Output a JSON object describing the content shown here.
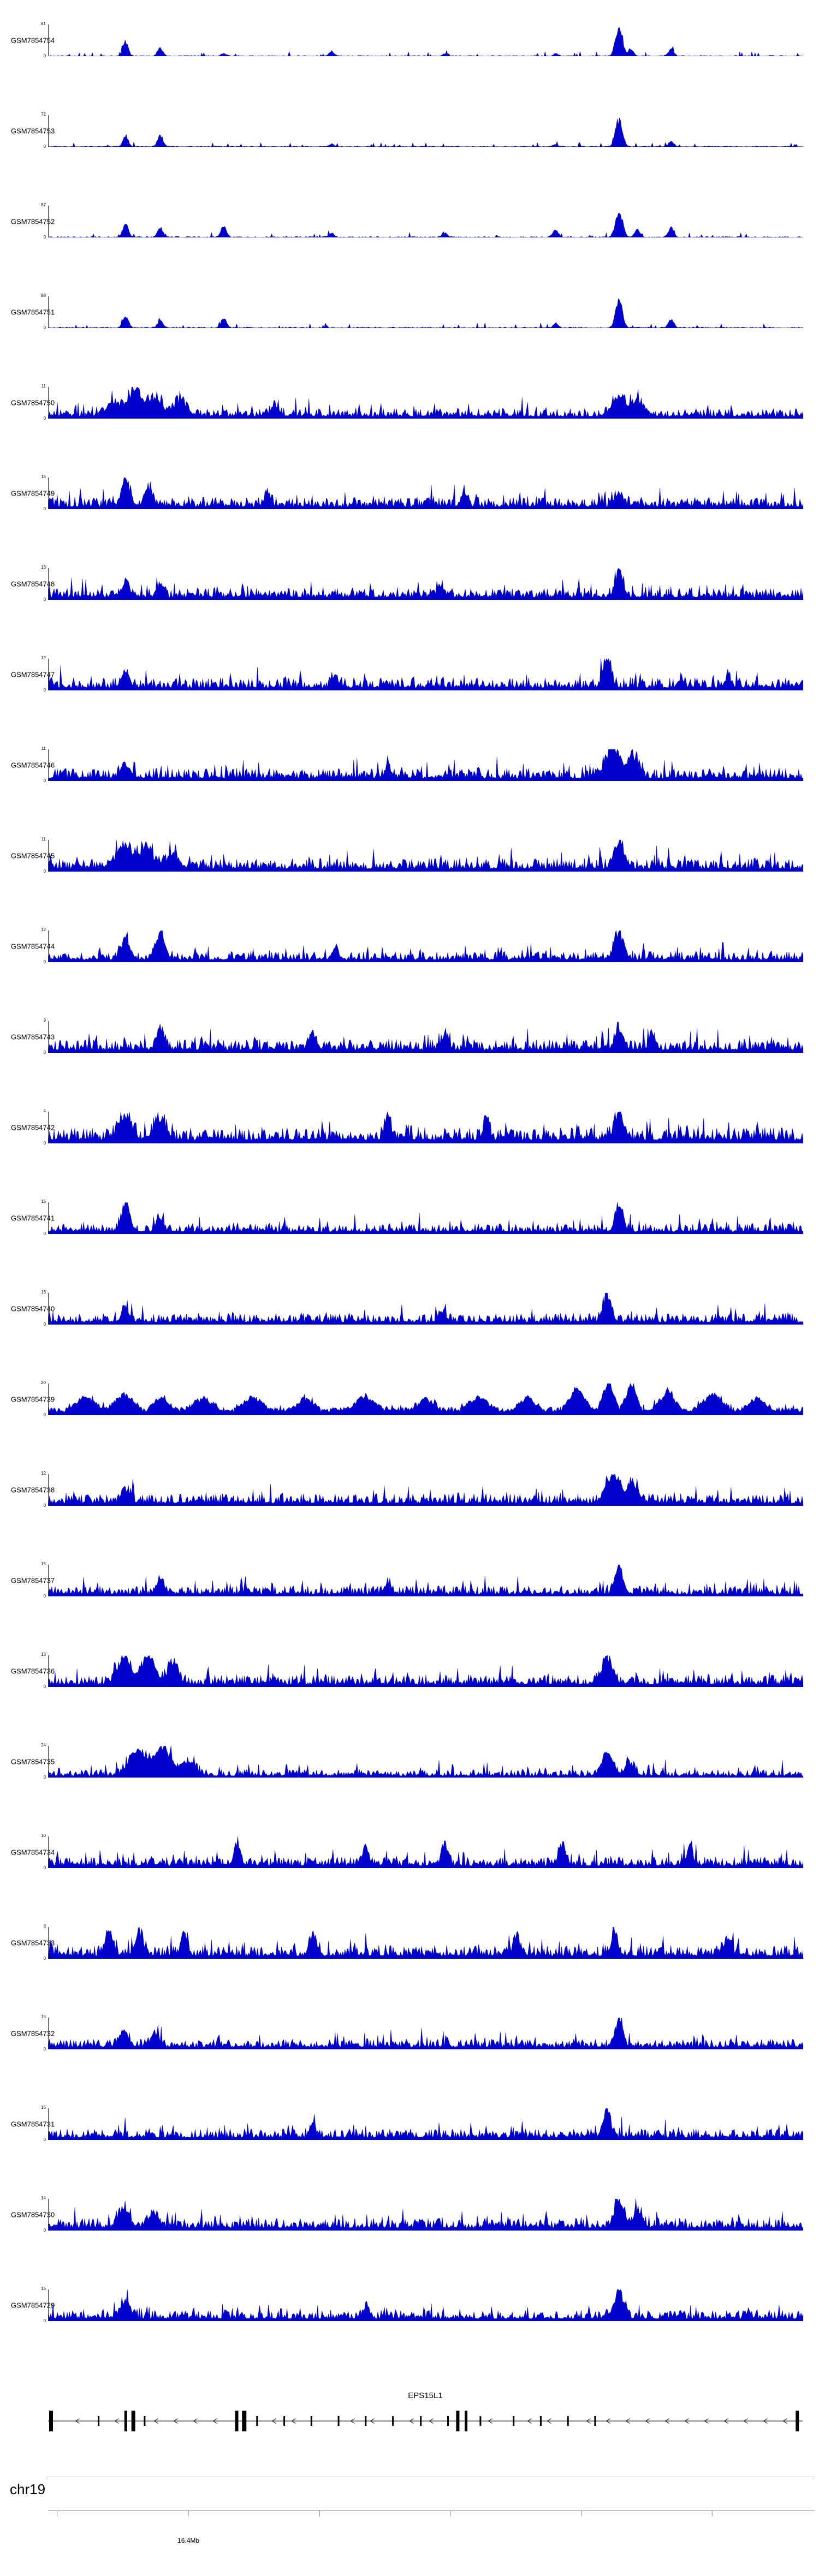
{
  "figure": {
    "signal_color": "#0000cd",
    "chromosome": "chr19",
    "y_min_label": "0",
    "gene": {
      "name": "EPS15L1",
      "strand": "-",
      "exons": [
        [
          0.004,
          7,
          1
        ],
        [
          0.067,
          3,
          0
        ],
        [
          0.103,
          5,
          1
        ],
        [
          0.113,
          7,
          1
        ],
        [
          0.128,
          3,
          0
        ],
        [
          0.25,
          6,
          1
        ],
        [
          0.26,
          8,
          1
        ],
        [
          0.277,
          3,
          0
        ],
        [
          0.313,
          3,
          0
        ],
        [
          0.349,
          3,
          0
        ],
        [
          0.385,
          3,
          0
        ],
        [
          0.421,
          3,
          0
        ],
        [
          0.457,
          3,
          0
        ],
        [
          0.494,
          3,
          0
        ],
        [
          0.53,
          3,
          0
        ],
        [
          0.543,
          6,
          1
        ],
        [
          0.554,
          5,
          1
        ],
        [
          0.573,
          3,
          0
        ],
        [
          0.617,
          3,
          0
        ],
        [
          0.653,
          3,
          0
        ],
        [
          0.689,
          3,
          0
        ],
        [
          0.725,
          3,
          0
        ],
        [
          0.993,
          6,
          1
        ]
      ]
    },
    "ruler": {
      "tick_label": "16.4Mb",
      "tick_positions": [
        0.012,
        0.186,
        0.36,
        0.533,
        0.707,
        0.88
      ],
      "labeled_tick_index": 1
    }
  },
  "chart_data": {
    "type": "area",
    "x_axis": {
      "chromosome": "chr19",
      "labeled_position": "16.4Mb"
    },
    "tracks": [
      {
        "name": "GSM7854754",
        "ymax": 81,
        "style": "sparse",
        "baseline": 0.022,
        "peaks": [
          [
            0.102,
            0.52,
            0.0035
          ],
          [
            0.148,
            0.3,
            0.0035
          ],
          [
            0.232,
            0.1,
            0.003
          ],
          [
            0.375,
            0.16,
            0.0035
          ],
          [
            0.525,
            0.09,
            0.003
          ],
          [
            0.672,
            0.1,
            0.003
          ],
          [
            0.756,
            1.0,
            0.0045
          ],
          [
            0.772,
            0.22,
            0.0035
          ],
          [
            0.825,
            0.24,
            0.0035
          ]
        ]
      },
      {
        "name": "GSM7854753",
        "ymax": 72,
        "style": "sparse",
        "baseline": 0.02,
        "peaks": [
          [
            0.102,
            0.4,
            0.0035
          ],
          [
            0.148,
            0.42,
            0.0035
          ],
          [
            0.375,
            0.1,
            0.003
          ],
          [
            0.672,
            0.08,
            0.003
          ],
          [
            0.756,
            1.0,
            0.0045
          ],
          [
            0.825,
            0.18,
            0.0035
          ]
        ]
      },
      {
        "name": "GSM7854752",
        "ymax": 87,
        "style": "sparse",
        "baseline": 0.028,
        "peaks": [
          [
            0.102,
            0.5,
            0.0035
          ],
          [
            0.148,
            0.36,
            0.0035
          ],
          [
            0.232,
            0.4,
            0.0035
          ],
          [
            0.375,
            0.14,
            0.0035
          ],
          [
            0.525,
            0.16,
            0.0035
          ],
          [
            0.672,
            0.28,
            0.0035
          ],
          [
            0.756,
            1.0,
            0.0045
          ],
          [
            0.78,
            0.3,
            0.0035
          ],
          [
            0.825,
            0.34,
            0.0035
          ]
        ]
      },
      {
        "name": "GSM7854751",
        "ymax": 88,
        "style": "sparse",
        "baseline": 0.028,
        "peaks": [
          [
            0.102,
            0.44,
            0.0035
          ],
          [
            0.148,
            0.26,
            0.0035
          ],
          [
            0.232,
            0.35,
            0.0035
          ],
          [
            0.672,
            0.16,
            0.003
          ],
          [
            0.756,
            1.0,
            0.0045
          ],
          [
            0.825,
            0.3,
            0.0035
          ]
        ]
      },
      {
        "name": "GSM7854750",
        "ymax": 11,
        "style": "dense",
        "baseline": 0.32,
        "peaks": [
          [
            0.088,
            0.5,
            0.01
          ],
          [
            0.115,
            1.0,
            0.007
          ],
          [
            0.14,
            0.62,
            0.01
          ],
          [
            0.175,
            0.5,
            0.009
          ],
          [
            0.3,
            0.3,
            0.006
          ],
          [
            0.756,
            0.72,
            0.009
          ],
          [
            0.783,
            0.5,
            0.008
          ]
        ]
      },
      {
        "name": "GSM7854749",
        "ymax": 15,
        "style": "dense",
        "baseline": 0.38,
        "peaks": [
          [
            0.102,
            1.0,
            0.005
          ],
          [
            0.132,
            0.65,
            0.005
          ],
          [
            0.29,
            0.45,
            0.004
          ],
          [
            0.55,
            0.35,
            0.004
          ],
          [
            0.756,
            0.5,
            0.005
          ]
        ]
      },
      {
        "name": "GSM7854748",
        "ymax": 13,
        "style": "dense",
        "baseline": 0.38,
        "peaks": [
          [
            0.102,
            0.45,
            0.005
          ],
          [
            0.148,
            0.4,
            0.004
          ],
          [
            0.52,
            0.35,
            0.004
          ],
          [
            0.756,
            1.0,
            0.005
          ]
        ]
      },
      {
        "name": "GSM7854747",
        "ymax": 12,
        "style": "dense",
        "baseline": 0.4,
        "peaks": [
          [
            0.102,
            0.5,
            0.005
          ],
          [
            0.38,
            0.42,
            0.004
          ],
          [
            0.74,
            1.0,
            0.005
          ],
          [
            0.9,
            0.35,
            0.004
          ]
        ]
      },
      {
        "name": "GSM7854746",
        "ymax": 11,
        "style": "dense",
        "baseline": 0.4,
        "peaks": [
          [
            0.102,
            0.42,
            0.006
          ],
          [
            0.45,
            0.3,
            0.004
          ],
          [
            0.748,
            1.0,
            0.01
          ],
          [
            0.775,
            0.75,
            0.007
          ]
        ]
      },
      {
        "name": "GSM7854745",
        "ymax": 11,
        "style": "dense",
        "baseline": 0.42,
        "peaks": [
          [
            0.1,
            0.8,
            0.01
          ],
          [
            0.13,
            0.72,
            0.009
          ],
          [
            0.165,
            0.55,
            0.007
          ],
          [
            0.756,
            0.88,
            0.006
          ]
        ]
      },
      {
        "name": "GSM7854744",
        "ymax": 12,
        "style": "dense",
        "baseline": 0.35,
        "peaks": [
          [
            0.102,
            0.75,
            0.006
          ],
          [
            0.148,
            0.88,
            0.006
          ],
          [
            0.38,
            0.4,
            0.004
          ],
          [
            0.756,
            1.0,
            0.006
          ]
        ]
      },
      {
        "name": "GSM7854743",
        "ymax": 9,
        "style": "dense",
        "baseline": 0.42,
        "peaks": [
          [
            0.148,
            0.65,
            0.005
          ],
          [
            0.35,
            0.5,
            0.004
          ],
          [
            0.525,
            0.6,
            0.004
          ],
          [
            0.756,
            0.78,
            0.005
          ],
          [
            0.8,
            0.55,
            0.004
          ]
        ]
      },
      {
        "name": "GSM7854742",
        "ymax": 4,
        "style": "dense",
        "baseline": 0.5,
        "peaks": [
          [
            0.102,
            0.85,
            0.008
          ],
          [
            0.148,
            0.8,
            0.007
          ],
          [
            0.45,
            0.75,
            0.004
          ],
          [
            0.58,
            0.7,
            0.004
          ],
          [
            0.756,
            1.0,
            0.006
          ]
        ]
      },
      {
        "name": "GSM7854741",
        "ymax": 15,
        "style": "dense",
        "baseline": 0.33,
        "peaks": [
          [
            0.102,
            1.0,
            0.005
          ],
          [
            0.148,
            0.5,
            0.004
          ],
          [
            0.756,
            0.85,
            0.005
          ]
        ]
      },
      {
        "name": "GSM7854740",
        "ymax": 13,
        "style": "dense",
        "baseline": 0.36,
        "peaks": [
          [
            0.102,
            0.45,
            0.005
          ],
          [
            0.52,
            0.35,
            0.004
          ],
          [
            0.74,
            1.0,
            0.005
          ]
        ]
      },
      {
        "name": "GSM7854739",
        "ymax": 20,
        "style": "triangle",
        "baseline": 0.26,
        "peaks": [
          [
            0.05,
            0.45,
            0.005
          ],
          [
            0.1,
            0.55,
            0.005
          ],
          [
            0.15,
            0.45,
            0.004
          ],
          [
            0.205,
            0.42,
            0.005
          ],
          [
            0.27,
            0.48,
            0.005
          ],
          [
            0.34,
            0.42,
            0.004
          ],
          [
            0.42,
            0.46,
            0.005
          ],
          [
            0.5,
            0.42,
            0.004
          ],
          [
            0.57,
            0.46,
            0.005
          ],
          [
            0.635,
            0.45,
            0.004
          ],
          [
            0.7,
            0.75,
            0.004
          ],
          [
            0.742,
            1.0,
            0.003
          ],
          [
            0.772,
            0.88,
            0.003
          ],
          [
            0.82,
            0.65,
            0.004
          ],
          [
            0.88,
            0.55,
            0.005
          ],
          [
            0.94,
            0.45,
            0.004
          ]
        ]
      },
      {
        "name": "GSM7854738",
        "ymax": 12,
        "style": "dense",
        "baseline": 0.38,
        "peaks": [
          [
            0.102,
            0.45,
            0.006
          ],
          [
            0.748,
            1.0,
            0.009
          ],
          [
            0.775,
            0.7,
            0.007
          ]
        ]
      },
      {
        "name": "GSM7854737",
        "ymax": 15,
        "style": "dense",
        "baseline": 0.33,
        "peaks": [
          [
            0.148,
            0.4,
            0.005
          ],
          [
            0.45,
            0.35,
            0.004
          ],
          [
            0.756,
            1.0,
            0.005
          ]
        ]
      },
      {
        "name": "GSM7854736",
        "ymax": 13,
        "style": "dense",
        "baseline": 0.38,
        "peaks": [
          [
            0.1,
            0.85,
            0.009
          ],
          [
            0.132,
            1.0,
            0.009
          ],
          [
            0.165,
            0.65,
            0.007
          ],
          [
            0.74,
            0.88,
            0.007
          ]
        ]
      },
      {
        "name": "GSM7854735",
        "ymax": 24,
        "style": "dense",
        "baseline": 0.25,
        "peaks": [
          [
            0.118,
            0.85,
            0.011
          ],
          [
            0.15,
            1.0,
            0.011
          ],
          [
            0.185,
            0.55,
            0.009
          ],
          [
            0.74,
            0.75,
            0.007
          ],
          [
            0.77,
            0.5,
            0.006
          ]
        ]
      },
      {
        "name": "GSM7854734",
        "ymax": 10,
        "style": "dense",
        "baseline": 0.35,
        "peaks": [
          [
            0.25,
            0.75,
            0.004
          ],
          [
            0.42,
            0.65,
            0.004
          ],
          [
            0.525,
            0.7,
            0.004
          ],
          [
            0.68,
            0.78,
            0.004
          ],
          [
            0.85,
            0.65,
            0.004
          ]
        ]
      },
      {
        "name": "GSM7854733",
        "ymax": 8,
        "style": "dense",
        "baseline": 0.42,
        "peaks": [
          [
            0.08,
            0.85,
            0.005
          ],
          [
            0.12,
            0.8,
            0.005
          ],
          [
            0.18,
            0.75,
            0.004
          ],
          [
            0.35,
            0.7,
            0.004
          ],
          [
            0.62,
            0.75,
            0.004
          ],
          [
            0.75,
            0.8,
            0.004
          ],
          [
            0.9,
            0.65,
            0.004
          ]
        ]
      },
      {
        "name": "GSM7854732",
        "ymax": 15,
        "style": "dense",
        "baseline": 0.33,
        "peaks": [
          [
            0.1,
            0.55,
            0.006
          ],
          [
            0.14,
            0.5,
            0.005
          ],
          [
            0.756,
            1.0,
            0.005
          ]
        ]
      },
      {
        "name": "GSM7854731",
        "ymax": 15,
        "style": "dense",
        "baseline": 0.36,
        "peaks": [
          [
            0.35,
            0.4,
            0.004
          ],
          [
            0.74,
            1.0,
            0.005
          ]
        ]
      },
      {
        "name": "GSM7854730",
        "ymax": 14,
        "style": "dense",
        "baseline": 0.4,
        "peaks": [
          [
            0.1,
            0.58,
            0.007
          ],
          [
            0.14,
            0.5,
            0.006
          ],
          [
            0.756,
            1.0,
            0.006
          ],
          [
            0.783,
            0.55,
            0.005
          ]
        ]
      },
      {
        "name": "GSM7854729",
        "ymax": 15,
        "style": "dense",
        "baseline": 0.35,
        "peaks": [
          [
            0.102,
            0.65,
            0.006
          ],
          [
            0.42,
            0.4,
            0.004
          ],
          [
            0.756,
            1.0,
            0.006
          ]
        ]
      }
    ]
  }
}
